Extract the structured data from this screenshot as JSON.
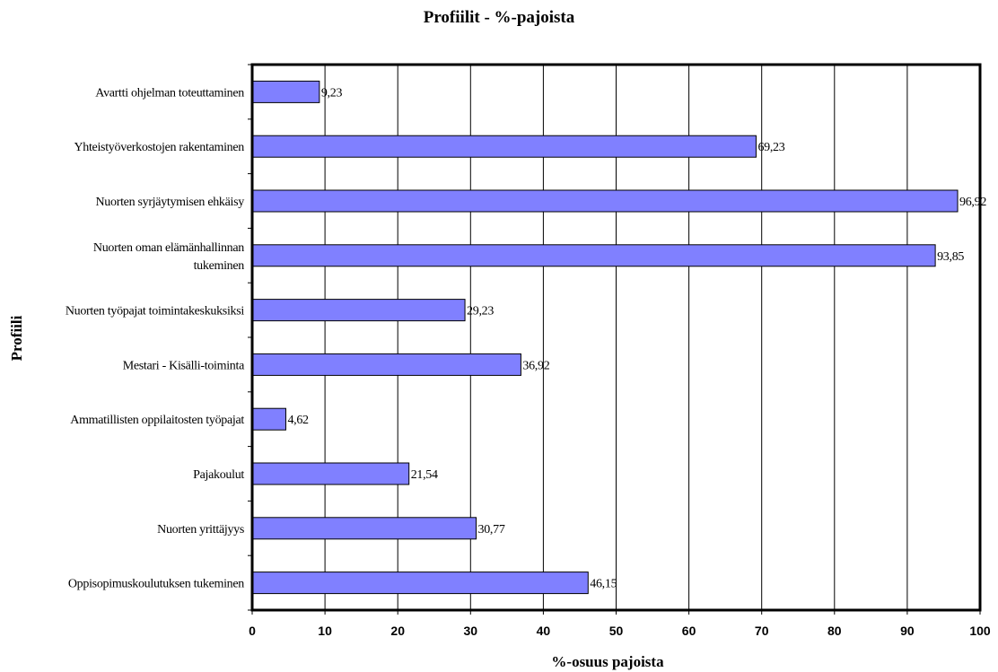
{
  "chart_data": {
    "type": "bar",
    "orientation": "horizontal",
    "title": "Profiilit - %-pajoista",
    "xlabel": "%-osuus pajoista",
    "ylabel": "Profiili",
    "xlim": [
      0,
      100
    ],
    "xticks": [
      0,
      10,
      20,
      30,
      40,
      50,
      60,
      70,
      80,
      90,
      100
    ],
    "grid": true,
    "categories": [
      [
        "Avartti ohjelman toteuttaminen"
      ],
      [
        "Yhteistyöverkostojen rakentaminen"
      ],
      [
        "Nuorten syrjäytymisen ehkäisy"
      ],
      [
        "Nuorten oman elämänhallinnan",
        "tukeminen"
      ],
      [
        "Nuorten työpajat toimintakeskuksiksi"
      ],
      [
        "Mestari - Kisälli-toiminta"
      ],
      [
        "Ammatillisten oppilaitosten työpajat"
      ],
      [
        "Pajakoulut"
      ],
      [
        "Nuorten yrittäjyys"
      ],
      [
        "Oppisopimuskoulutuksen tukeminen"
      ]
    ],
    "values": [
      9.23,
      69.23,
      96.92,
      93.85,
      29.23,
      36.92,
      4.62,
      21.54,
      30.77,
      46.15
    ],
    "value_labels": [
      "9,23",
      "69,23",
      "96,92",
      "93,85",
      "29,23",
      "36,92",
      "4,62",
      "21,54",
      "30,77",
      "46,15"
    ],
    "bar_color": "#8080ff"
  }
}
